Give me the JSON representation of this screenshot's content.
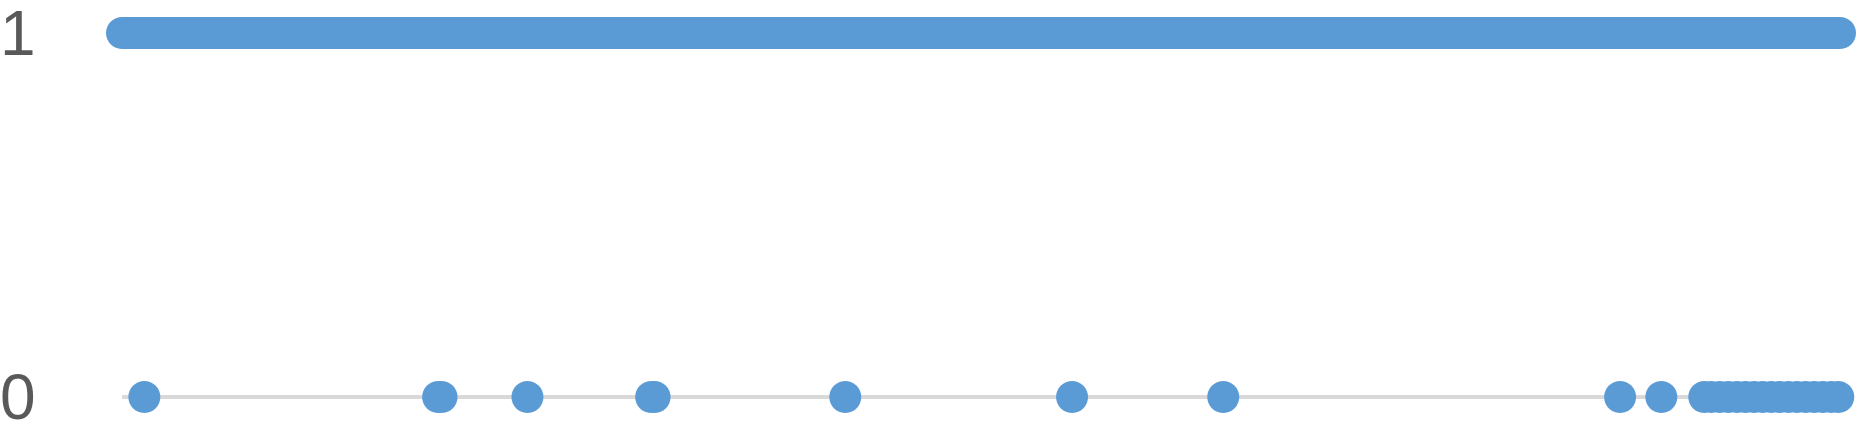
{
  "chart_data": {
    "type": "scatter",
    "title": "",
    "xlabel": "",
    "ylabel": "",
    "y_ticks": [
      "0",
      "1"
    ],
    "ylim": [
      0,
      1
    ],
    "xlim": [
      0,
      1000
    ],
    "grid": false,
    "legend": "none",
    "series": [
      {
        "color": "#5B9BD5",
        "points": [
          {
            "x": 13,
            "y": 0
          },
          {
            "x": 184,
            "y": 0
          },
          {
            "x": 186,
            "y": 0
          },
          {
            "x": 236,
            "y": 0
          },
          {
            "x": 308,
            "y": 0
          },
          {
            "x": 310,
            "y": 0
          },
          {
            "x": 421,
            "y": 0
          },
          {
            "x": 553,
            "y": 0
          },
          {
            "x": 641,
            "y": 0
          },
          {
            "x": 872,
            "y": 0
          },
          {
            "x": 896,
            "y": 0
          },
          {
            "x": 921,
            "y": 0
          },
          {
            "x": 925,
            "y": 0
          },
          {
            "x": 930,
            "y": 0
          },
          {
            "x": 935,
            "y": 0
          },
          {
            "x": 940,
            "y": 0
          },
          {
            "x": 945,
            "y": 0
          },
          {
            "x": 950,
            "y": 0
          },
          {
            "x": 955,
            "y": 0
          },
          {
            "x": 960,
            "y": 0
          },
          {
            "x": 965,
            "y": 0
          },
          {
            "x": 970,
            "y": 0
          },
          {
            "x": 975,
            "y": 0
          },
          {
            "x": 980,
            "y": 0
          },
          {
            "x": 985,
            "y": 0
          },
          {
            "x": 990,
            "y": 0
          },
          {
            "x": 995,
            "y": 0
          },
          {
            "x": 999,
            "y": 0
          }
        ],
        "segments": [
          {
            "x0": 0,
            "x1": 1000,
            "y": 1
          }
        ]
      }
    ]
  },
  "colors": {
    "series": "#5B9BD5",
    "baseline": "#D9D9D9",
    "tick_text": "#595959"
  }
}
